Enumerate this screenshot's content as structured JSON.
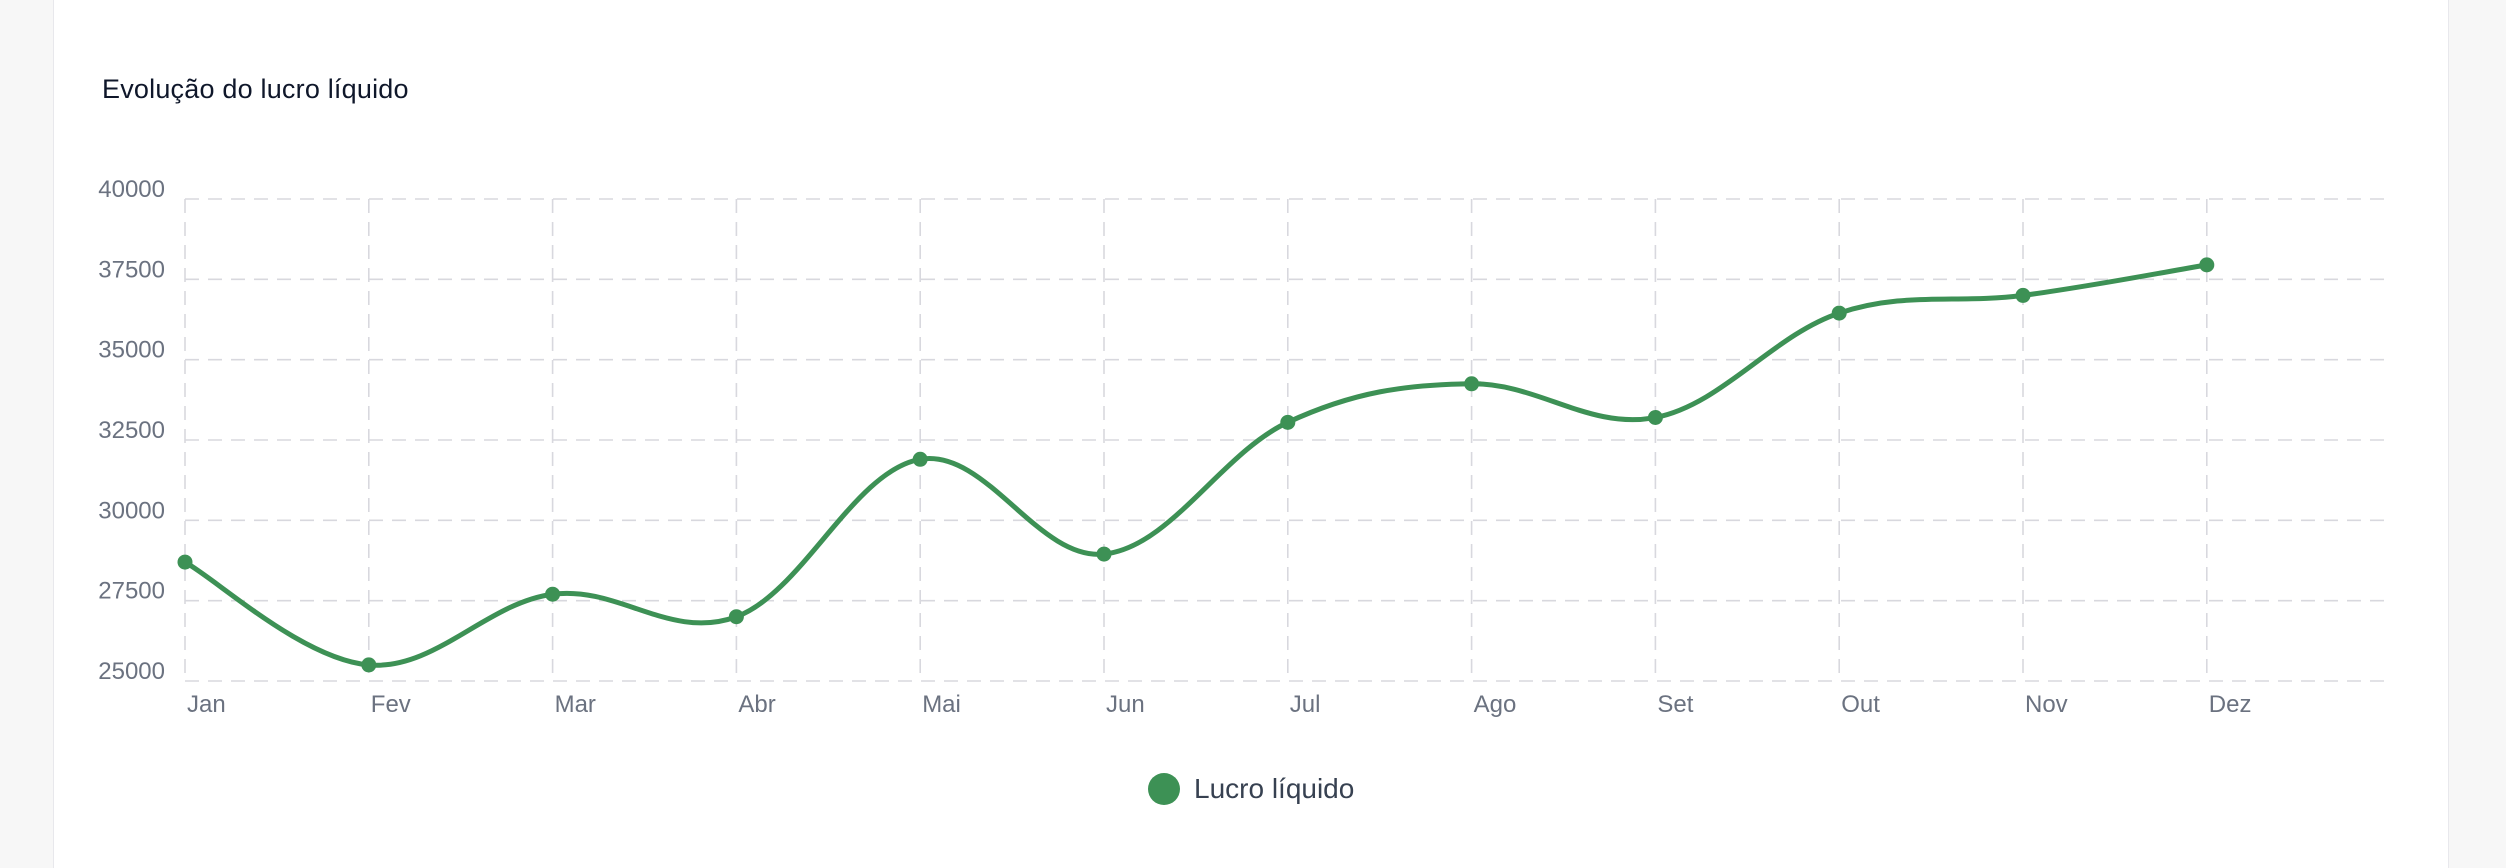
{
  "card": {
    "title": "Evolução do lucro líquido"
  },
  "colors": {
    "series": "#3d9155",
    "grid": "#d8d8de",
    "tick_text": "#6b7280"
  },
  "legend": {
    "label": "Lucro líquido",
    "placement": "bottom-center"
  },
  "chart_data": {
    "type": "line",
    "title": "",
    "xlabel": "",
    "ylabel": "",
    "categories": [
      "Jan",
      "Fev",
      "Mar",
      "Abr",
      "Mai",
      "Jun",
      "Jul",
      "Ago",
      "Set",
      "Out",
      "Nov",
      "Dez"
    ],
    "yticks": [
      "40000",
      "37500",
      "35000",
      "32500",
      "30000",
      "27500",
      "25000"
    ],
    "ylim": [
      25000,
      40000
    ],
    "grid": true,
    "smooth": true,
    "series": [
      {
        "name": "Lucro líquido",
        "values": [
          28700,
          25500,
          27700,
          27000,
          31900,
          28950,
          33050,
          34250,
          33200,
          36450,
          37000,
          37950
        ]
      }
    ]
  }
}
